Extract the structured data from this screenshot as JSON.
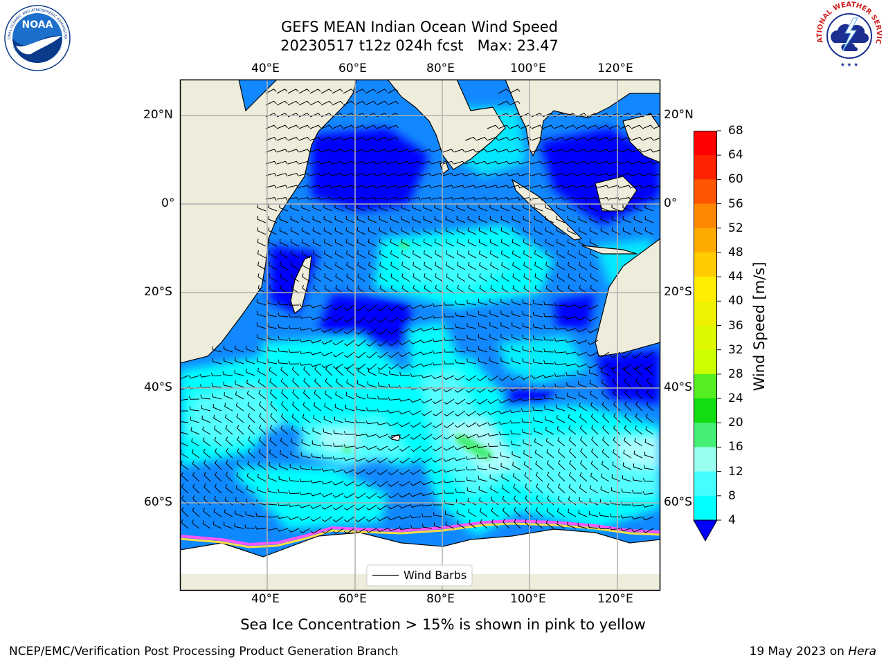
{
  "title_line1": "GEFS MEAN Indian Ocean Wind Speed",
  "title_line2": "20230517 t12z 024h fcst   Max: 23.47",
  "map": {
    "top_longitude_labels": [
      "40°E",
      "60°E",
      "80°E",
      "100°E",
      "120°E"
    ],
    "bottom_longitude_labels": [
      "40°E",
      "60°E",
      "80°E",
      "100°E",
      "120°E"
    ],
    "left_latitude_labels": [
      "20°N",
      "0°",
      "20°S",
      "40°S",
      "60°S"
    ],
    "right_latitude_labels": [
      "20°N",
      "0°",
      "20°S",
      "40°S",
      "60°S"
    ],
    "gridlines": true,
    "land_color": "#EEEDDC",
    "legend_label": "Wind Barbs",
    "legend_position": "bottom-center"
  },
  "colorbar": {
    "label": "Wind Speed [m/s]",
    "ticks": [
      "68",
      "64",
      "60",
      "56",
      "52",
      "48",
      "44",
      "40",
      "36",
      "32",
      "28",
      "24",
      "20",
      "16",
      "12",
      "8",
      "4"
    ],
    "colors": [
      "#FF0000",
      "#FF2200",
      "#FF5500",
      "#FF8800",
      "#FFAA00",
      "#FFCC00",
      "#FFEE00",
      "#EEF200",
      "#DDF800",
      "#CCFF00",
      "#55EE22",
      "#11DD11",
      "#44EE77",
      "#99FFEE",
      "#44FFFF",
      "#00FFFF",
      "#1188FF"
    ],
    "extend_color": "#0000FF"
  },
  "palette": {
    "deep_blue": "#0000FF",
    "blue": "#1188FF",
    "aqua": "#00FFFF",
    "light_aqua": "#55FFFF",
    "pale_aqua": "#AAFFFF",
    "green": "#44EE77",
    "ice_white": "#FFFFFF",
    "ice_pink": "#FF55FF",
    "ice_yellow": "#FFDD44"
  },
  "caption": "Sea Ice Concentration > 15% is shown in pink to yellow",
  "footer_left": "NCEP/EMC/Verification Post Processing Product Generation Branch",
  "footer_date": "19 May 2023 on",
  "footer_host": "Hera",
  "logos": {
    "left": {
      "name": "NOAA",
      "ring_text": "NATIONAL OCEANIC AND ATMOSPHERIC ADMINISTRATION",
      "bottom_text": "U.S. DEPARTMENT OF COMMERCE"
    },
    "right": {
      "ring_text": "NATIONAL WEATHER SERVICE"
    }
  }
}
